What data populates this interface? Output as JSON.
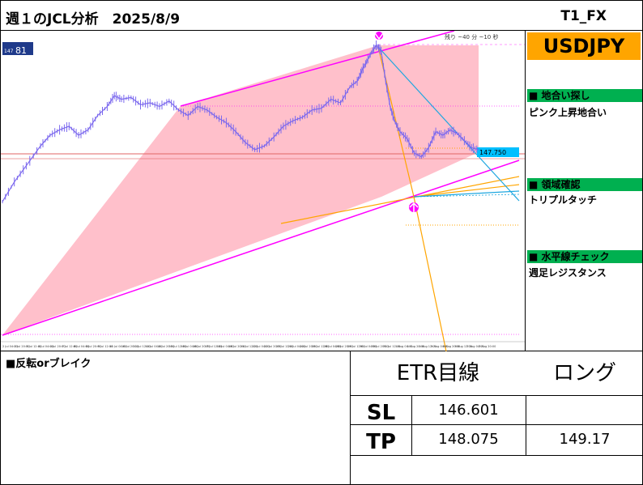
{
  "header": {
    "title": "週１のJCL分析　2025/8/9",
    "brand": "T1_FX"
  },
  "sidebar": {
    "pair": "USDJPY",
    "sections": [
      {
        "heading": "■ 地合い探し",
        "body": "ピンク上昇地合い"
      },
      {
        "heading": "■ 領域確認",
        "body": "トリプルタッチ"
      },
      {
        "heading": "■ 水平線チェック",
        "body": "週足レジスタンス"
      }
    ]
  },
  "bottom": {
    "label": "■反転orブレイク",
    "table": {
      "header_left": "ETR目線",
      "header_right": "ロング",
      "rows": [
        {
          "label": "SL",
          "value": "146.601",
          "extra": ""
        },
        {
          "label": "TP",
          "value": "148.075",
          "extra": "149.17"
        }
      ]
    }
  },
  "colors": {
    "candle": "#7B68EE",
    "channel": "#FF00FF",
    "zone": "#FFC0CB",
    "orange": "#FFA500",
    "blue": "#1EA7E0",
    "pair_bg": "#FFA500",
    "section_bg": "#00B050"
  },
  "chart_data": {
    "type": "line",
    "symbol": "USDJPY",
    "badge": {
      "spread": "81",
      "sub": "147"
    },
    "info_bar": "残り ~40 分 ~10 秒",
    "current_price_label": "147.750",
    "x_tick_labels": [
      "2 Jul 04:00",
      "2 Jul 20:00",
      "3 Jul 12:00",
      "4 Jul 04:00",
      "4 Jul 20:00",
      "7 Jul 12:00",
      "8 Jul 04:00",
      "8 Jul 20:00",
      "9 Jul 12:00",
      "10 Jul 04:00",
      "10 Jul 20:00",
      "11 Jul 12:00",
      "14 Jul 04:00",
      "14 Jul 20:00",
      "15 Jul 12:00",
      "16 Jul 04:00",
      "16 Jul 20:00",
      "17 Jul 12:00",
      "18 Jul 04:00",
      "18 Jul 20:00",
      "21 Jul 12:00",
      "22 Jul 04:00",
      "22 Jul 20:00",
      "23 Jul 12:00",
      "24 Jul 04:00",
      "24 Jul 20:00",
      "25 Jul 12:00",
      "28 Jul 04:00",
      "28 Jul 20:00",
      "29 Jul 12:00",
      "30 Jul 04:00",
      "30 Jul 20:00",
      "31 Jul 12:00",
      "1 Aug 04:00",
      "1 Aug 20:00",
      "4 Aug 12:00",
      "5 Aug 04:00",
      "5 Aug 20:00",
      "6 Aug 12:00",
      "7 Aug 04:00",
      "7 Aug 20:00"
    ],
    "price_path": [
      [
        0,
        0.13
      ],
      [
        0.025,
        0.24
      ],
      [
        0.05,
        0.33
      ],
      [
        0.08,
        0.44
      ],
      [
        0.1,
        0.5
      ],
      [
        0.12,
        0.53
      ],
      [
        0.14,
        0.55
      ],
      [
        0.16,
        0.5
      ],
      [
        0.18,
        0.53
      ],
      [
        0.2,
        0.61
      ],
      [
        0.22,
        0.66
      ],
      [
        0.235,
        0.72
      ],
      [
        0.25,
        0.7
      ],
      [
        0.27,
        0.71
      ],
      [
        0.29,
        0.67
      ],
      [
        0.31,
        0.68
      ],
      [
        0.33,
        0.66
      ],
      [
        0.35,
        0.69
      ],
      [
        0.37,
        0.64
      ],
      [
        0.39,
        0.61
      ],
      [
        0.41,
        0.66
      ],
      [
        0.43,
        0.64
      ],
      [
        0.45,
        0.6
      ],
      [
        0.47,
        0.57
      ],
      [
        0.49,
        0.52
      ],
      [
        0.51,
        0.46
      ],
      [
        0.53,
        0.42
      ],
      [
        0.55,
        0.44
      ],
      [
        0.57,
        0.49
      ],
      [
        0.59,
        0.55
      ],
      [
        0.61,
        0.58
      ],
      [
        0.63,
        0.6
      ],
      [
        0.65,
        0.64
      ],
      [
        0.67,
        0.65
      ],
      [
        0.69,
        0.7
      ],
      [
        0.71,
        0.68
      ],
      [
        0.73,
        0.77
      ],
      [
        0.745,
        0.8
      ],
      [
        0.755,
        0.86
      ],
      [
        0.765,
        0.91
      ],
      [
        0.775,
        0.96
      ],
      [
        0.785,
        1.0
      ],
      [
        0.795,
        0.97
      ],
      [
        0.805,
        0.8
      ],
      [
        0.815,
        0.65
      ],
      [
        0.825,
        0.57
      ],
      [
        0.835,
        0.52
      ],
      [
        0.85,
        0.48
      ],
      [
        0.865,
        0.4
      ],
      [
        0.88,
        0.38
      ],
      [
        0.895,
        0.43
      ],
      [
        0.91,
        0.52
      ],
      [
        0.925,
        0.5
      ],
      [
        0.94,
        0.53
      ],
      [
        0.955,
        0.51
      ],
      [
        0.97,
        0.47
      ],
      [
        0.985,
        0.43
      ],
      [
        1.0,
        0.42
      ]
    ]
  }
}
